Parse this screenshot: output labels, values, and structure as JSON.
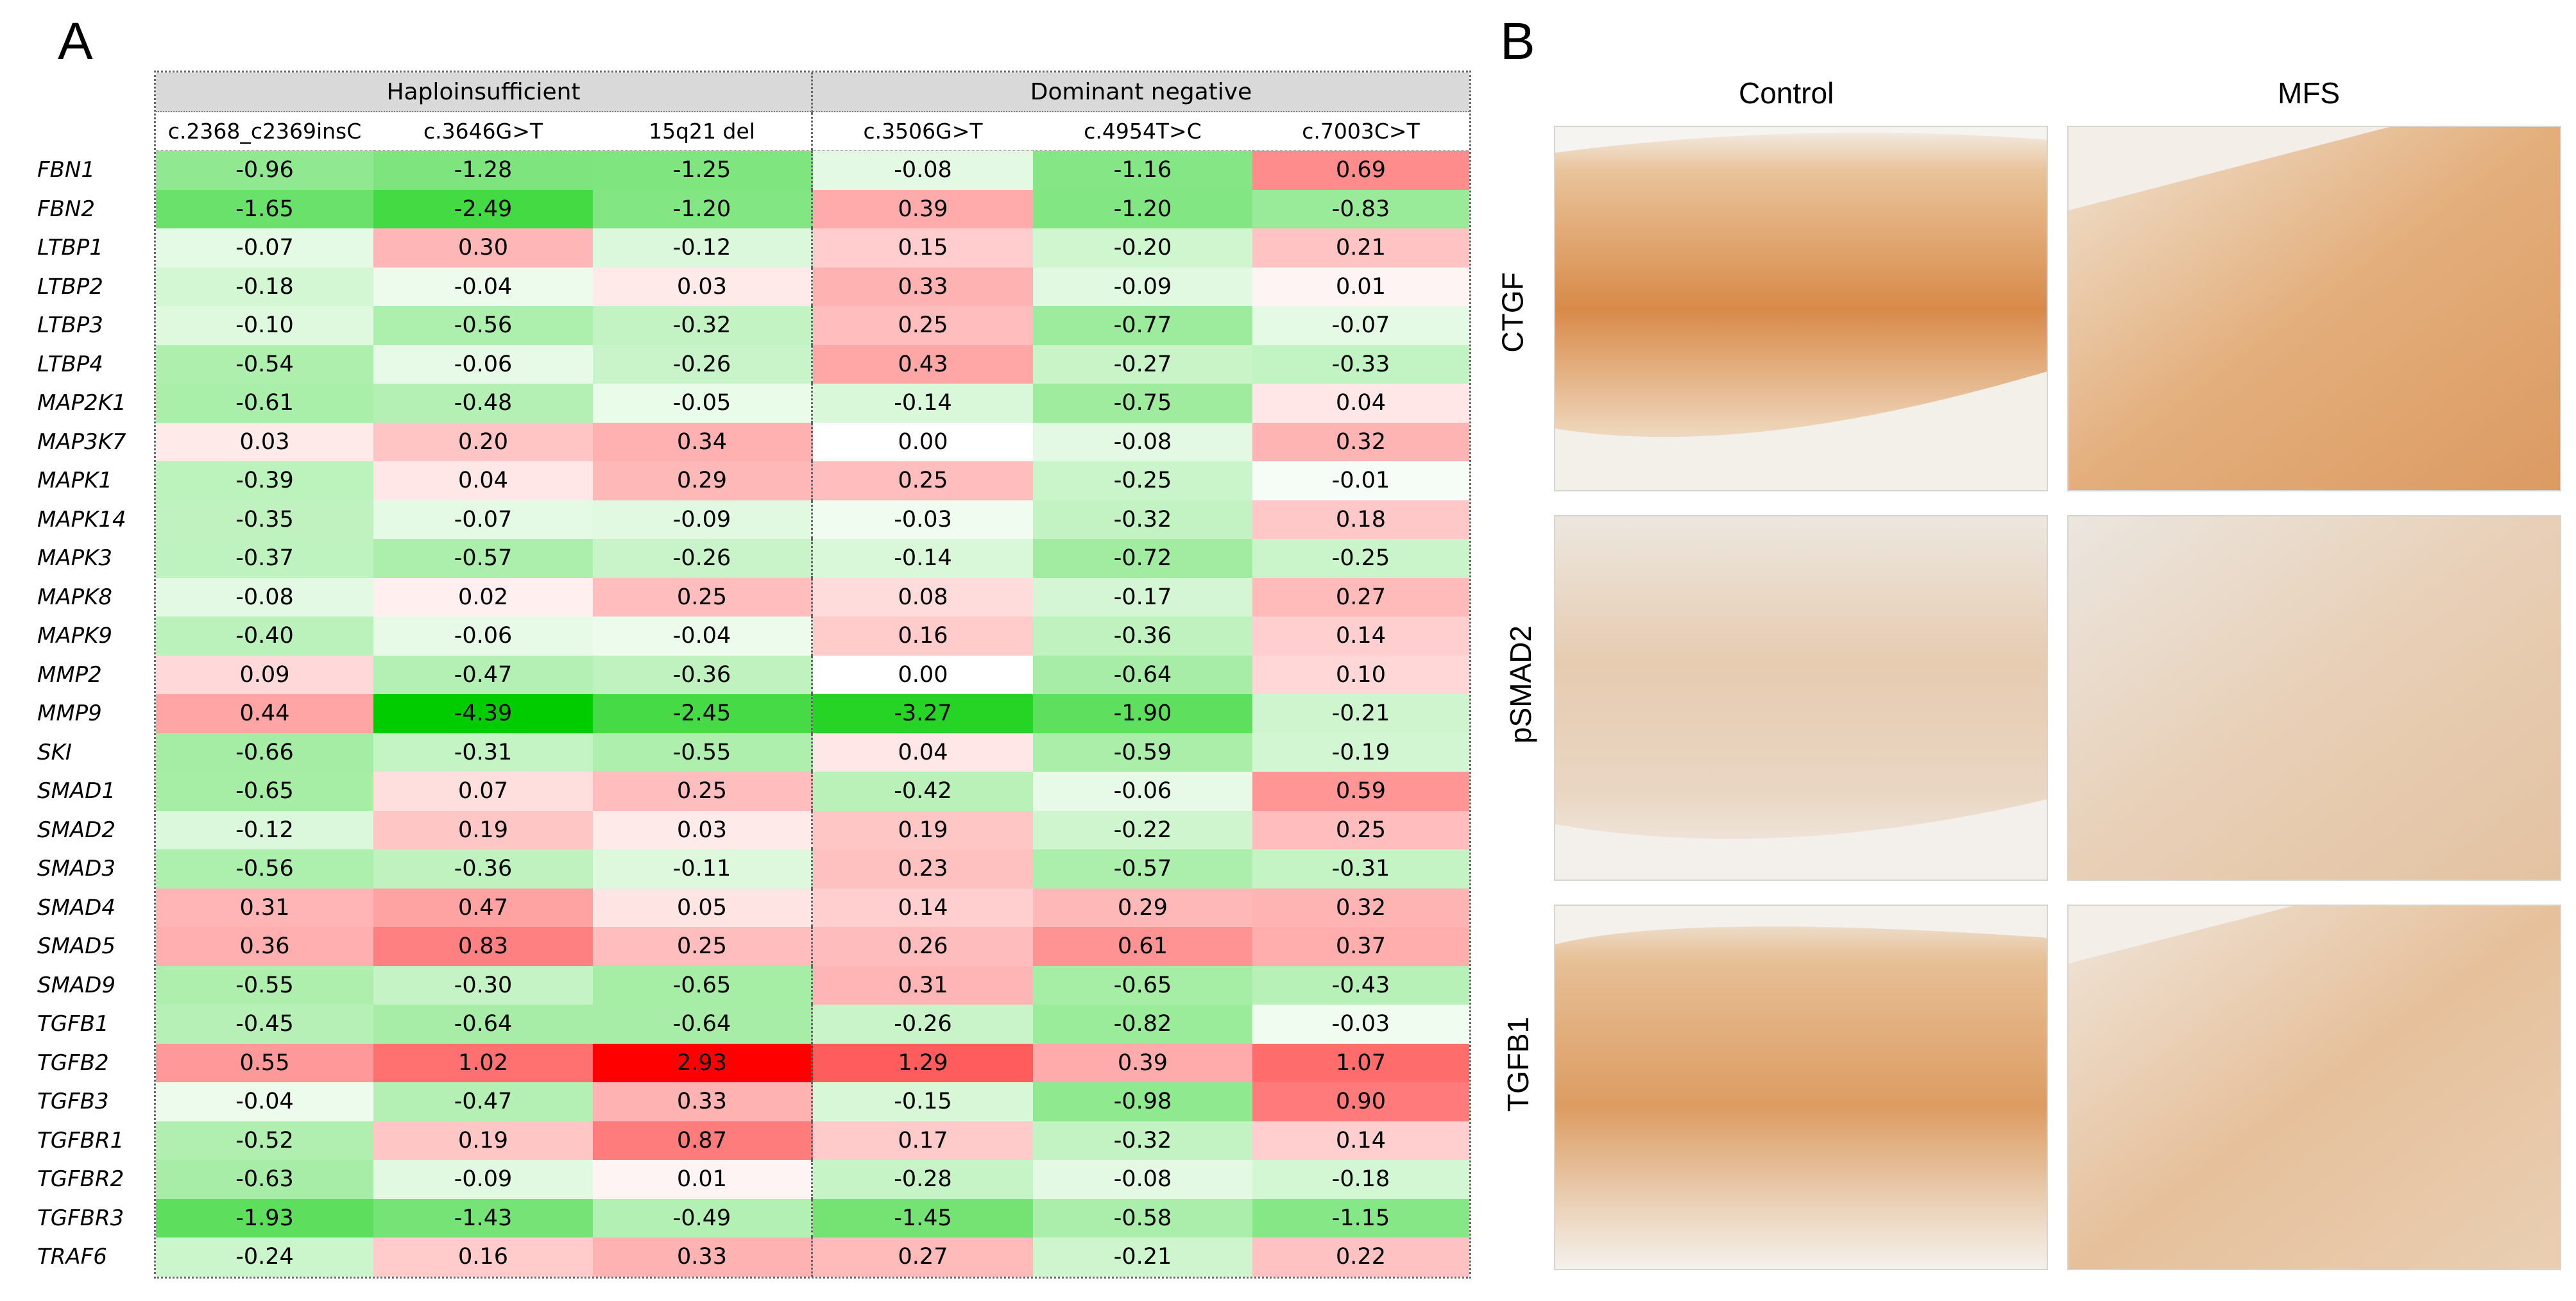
{
  "panels": {
    "a_letter": "A",
    "b_letter": "B"
  },
  "chart_data": {
    "type": "heatmap",
    "group_headers": [
      "Haploinsufficient",
      "Dominant negative"
    ],
    "columns": [
      "c.2368_c2369insC",
      "c.3646G>T",
      "15q21 del",
      "c.3506G>T",
      "c.4954T>C",
      "c.7003C>T"
    ],
    "rows": [
      "FBN1",
      "FBN2",
      "LTBP1",
      "LTBP2",
      "LTBP3",
      "LTBP4",
      "MAP2K1",
      "MAP3K7",
      "MAPK1",
      "MAPK14",
      "MAPK3",
      "MAPK8",
      "MAPK9",
      "MMP2",
      "MMP9",
      "SKI",
      "SMAD1",
      "SMAD2",
      "SMAD3",
      "SMAD4",
      "SMAD5",
      "SMAD9",
      "TGFB1",
      "TGFB2",
      "TGFB3",
      "TGFBR1",
      "TGFBR2",
      "TGFBR3",
      "TRAF6"
    ],
    "values": [
      [
        "-0.96",
        "-1.28",
        "-1.25",
        "-0.08",
        "-1.16",
        "0.69"
      ],
      [
        "-1.65",
        "-2.49",
        "-1.20",
        "0.39",
        "-1.20",
        "-0.83"
      ],
      [
        "-0.07",
        "0.30",
        "-0.12",
        "0.15",
        "-0.20",
        "0.21"
      ],
      [
        "-0.18",
        "-0.04",
        "0.03",
        "0.33",
        "-0.09",
        "0.01"
      ],
      [
        "-0.10",
        "-0.56",
        "-0.32",
        "0.25",
        "-0.77",
        "-0.07"
      ],
      [
        "-0.54",
        "-0.06",
        "-0.26",
        "0.43",
        "-0.27",
        "-0.33"
      ],
      [
        "-0.61",
        "-0.48",
        "-0.05",
        "-0.14",
        "-0.75",
        "0.04"
      ],
      [
        "0.03",
        "0.20",
        "0.34",
        "0.00",
        "-0.08",
        "0.32"
      ],
      [
        "-0.39",
        "0.04",
        "0.29",
        "0.25",
        "-0.25",
        "-0.01"
      ],
      [
        "-0.35",
        "-0.07",
        "-0.09",
        "-0.03",
        "-0.32",
        "0.18"
      ],
      [
        "-0.37",
        "-0.57",
        "-0.26",
        "-0.14",
        "-0.72",
        "-0.25"
      ],
      [
        "-0.08",
        "0.02",
        "0.25",
        "0.08",
        "-0.17",
        "0.27"
      ],
      [
        "-0.40",
        "-0.06",
        "-0.04",
        "0.16",
        "-0.36",
        "0.14"
      ],
      [
        "0.09",
        "-0.47",
        "-0.36",
        "0.00",
        "-0.64",
        "0.10"
      ],
      [
        "0.44",
        "-4.39",
        "-2.45",
        "-3.27",
        "-1.90",
        "-0.21"
      ],
      [
        "-0.66",
        "-0.31",
        "-0.55",
        "0.04",
        "-0.59",
        "-0.19"
      ],
      [
        "-0.65",
        "0.07",
        "0.25",
        "-0.42",
        "-0.06",
        "0.59"
      ],
      [
        "-0.12",
        "0.19",
        "0.03",
        "0.19",
        "-0.22",
        "0.25"
      ],
      [
        "-0.56",
        "-0.36",
        "-0.11",
        "0.23",
        "-0.57",
        "-0.31"
      ],
      [
        "0.31",
        "0.47",
        "0.05",
        "0.14",
        "0.29",
        "0.32"
      ],
      [
        "0.36",
        "0.83",
        "0.25",
        "0.26",
        "0.61",
        "0.37"
      ],
      [
        "-0.55",
        "-0.30",
        "-0.65",
        "0.31",
        "-0.65",
        "-0.43"
      ],
      [
        "-0.45",
        "-0.64",
        "-0.64",
        "-0.26",
        "-0.82",
        "-0.03"
      ],
      [
        "0.55",
        "1.02",
        "2.93",
        "1.29",
        "0.39",
        "1.07"
      ],
      [
        "-0.04",
        "-0.47",
        "0.33",
        "-0.15",
        "-0.98",
        "0.90"
      ],
      [
        "-0.52",
        "0.19",
        "0.87",
        "0.17",
        "-0.32",
        "0.14"
      ],
      [
        "-0.63",
        "-0.09",
        "0.01",
        "-0.28",
        "-0.08",
        "-0.18"
      ],
      [
        "-1.93",
        "-1.43",
        "-0.49",
        "-1.45",
        "-0.58",
        "-1.15"
      ],
      [
        "-0.24",
        "0.16",
        "0.33",
        "0.27",
        "-0.21",
        "0.22"
      ]
    ],
    "color_scale": {
      "negative": "#00cc00",
      "zero": "#ffffff",
      "positive": "#ff0000"
    }
  },
  "images_panel": {
    "columns": [
      "Control",
      "MFS"
    ],
    "rows": [
      "CTGF",
      "pSMAD2",
      "TGFB1"
    ]
  }
}
